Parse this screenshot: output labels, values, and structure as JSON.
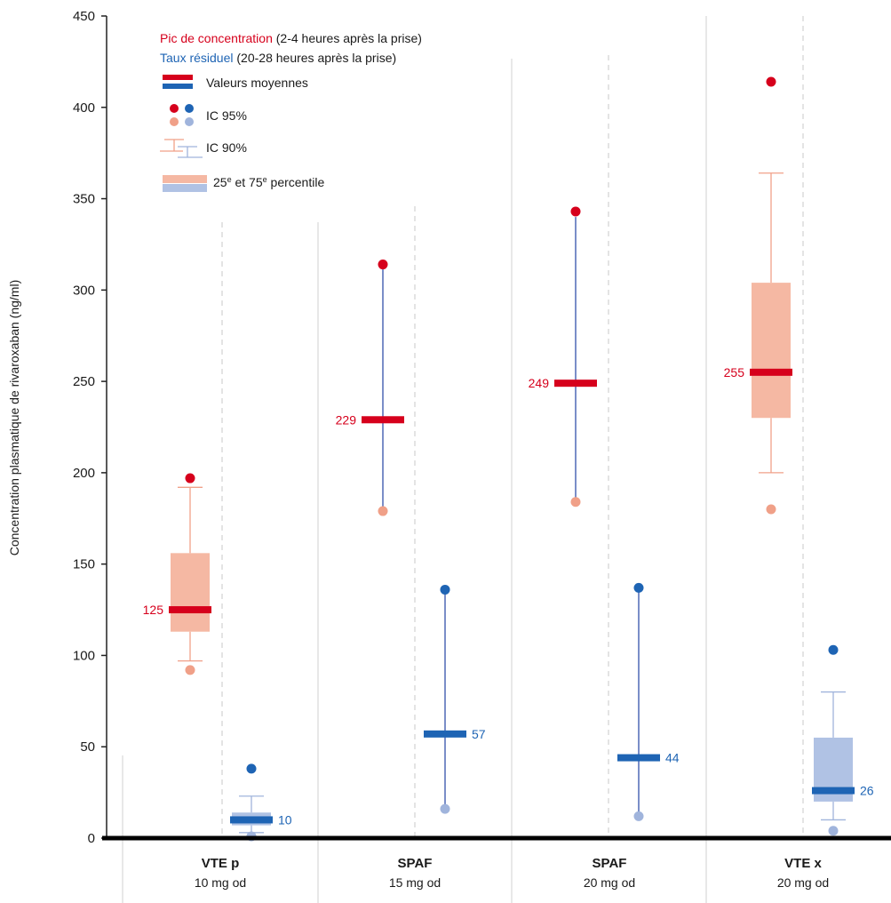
{
  "chart_data": {
    "type": "box",
    "ylabel": "Concentration plasmatique de rivaroxaban (ng/ml)",
    "ylim": [
      0,
      450
    ],
    "yticks": [
      0,
      50,
      100,
      150,
      200,
      250,
      300,
      350,
      400,
      450
    ],
    "grid": false,
    "legend_position": "top-left",
    "legend": {
      "peak_label": "Pic de concentration",
      "peak_note": " (2-4 heures après la prise)",
      "trough_label": "Taux résiduel",
      "trough_note": " (20-28 heures après la prise)",
      "mean_label": "Valeurs moyennes",
      "ci95_label": "IC 95%",
      "ci90_label": "IC 90%",
      "pct_label_a": "25",
      "pct_label_sup1": "e",
      "pct_label_b": " et 75",
      "pct_label_sup2": "e",
      "pct_label_c": " percentile"
    },
    "colors": {
      "peak": "#d6001c",
      "peak_light": "#f0a088",
      "peak_box": "#f5b8a3",
      "trough": "#1e64b4",
      "trough_light": "#a0b4dc",
      "trough_box": "#b0c2e4",
      "ci_line": "#7a8ec8"
    },
    "groups": [
      {
        "name": "VTE p",
        "dose": "10 mg od",
        "peak": {
          "mean": 125,
          "mean_label": "125",
          "ci95_high": 197,
          "ci95_low": 92,
          "ci90_high": 192,
          "ci90_low": 97,
          "q1": 113,
          "q3": 156
        },
        "trough": {
          "mean": 10,
          "mean_label": "10",
          "ci95_high": 38,
          "ci95_low": 1,
          "ci90_high": 23,
          "ci90_low": 3,
          "q1": 7,
          "q3": 14
        }
      },
      {
        "name": "SPAF",
        "dose": "15 mg od",
        "peak": {
          "mean": 229,
          "mean_label": "229",
          "ci95_high": 314,
          "ci95_low": 179,
          "ci90_high": 312,
          "ci90_low": 179
        },
        "trough": {
          "mean": 57,
          "mean_label": "57",
          "ci95_high": 136,
          "ci95_low": 16,
          "ci90_high": 135,
          "ci90_low": 16
        }
      },
      {
        "name": "SPAF",
        "dose": "20 mg od",
        "peak": {
          "mean": 249,
          "mean_label": "249",
          "ci95_high": 343,
          "ci95_low": 184,
          "ci90_high": 340,
          "ci90_low": 184
        },
        "trough": {
          "mean": 44,
          "mean_label": "44",
          "ci95_high": 137,
          "ci95_low": 12,
          "ci90_high": 136,
          "ci90_low": 12
        }
      },
      {
        "name": "VTE x",
        "dose": "20 mg od",
        "peak": {
          "mean": 255,
          "mean_label": "255",
          "ci95_high": 414,
          "ci95_low": 180,
          "ci90_high": 364,
          "ci90_low": 200,
          "q1": 230,
          "q3": 304
        },
        "trough": {
          "mean": 26,
          "mean_label": "26",
          "ci95_high": 103,
          "ci95_low": 4,
          "ci90_high": 80,
          "ci90_low": 10,
          "q1": 20,
          "q3": 55
        }
      }
    ]
  }
}
